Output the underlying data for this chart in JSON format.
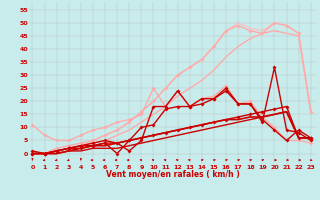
{
  "background_color": "#c8ecec",
  "grid_color": "#b0b0b0",
  "xlabel": "Vent moyen/en rafales ( km/h )",
  "xlabel_color": "#cc0000",
  "ylabel_ticks": [
    0,
    5,
    10,
    15,
    20,
    25,
    30,
    35,
    40,
    45,
    50,
    55
  ],
  "xticks": [
    0,
    1,
    2,
    3,
    4,
    5,
    6,
    7,
    8,
    9,
    10,
    11,
    12,
    13,
    14,
    15,
    16,
    17,
    18,
    19,
    20,
    21,
    22,
    23
  ],
  "xlim": [
    -0.3,
    23.5
  ],
  "ylim": [
    -4,
    58
  ],
  "lines": [
    {
      "x": [
        0,
        1,
        2,
        3,
        4,
        5,
        6,
        7,
        8,
        9,
        10,
        11,
        12,
        13,
        14,
        15,
        16,
        17,
        18,
        19,
        20,
        21,
        22,
        23
      ],
      "y": [
        0,
        0,
        1,
        2,
        3,
        4,
        5,
        7,
        9,
        12,
        15,
        18,
        22,
        25,
        28,
        32,
        37,
        41,
        44,
        46,
        47,
        46,
        45,
        16
      ],
      "color": "#ffaaaa",
      "linewidth": 1.0,
      "marker": null,
      "alpha": 1.0
    },
    {
      "x": [
        0,
        1,
        2,
        3,
        4,
        5,
        6,
        7,
        8,
        9,
        10,
        11,
        12,
        13,
        14,
        15,
        16,
        17,
        18,
        19,
        20,
        21,
        22,
        23
      ],
      "y": [
        0,
        0,
        1,
        2,
        3,
        5,
        7,
        9,
        12,
        16,
        20,
        25,
        30,
        33,
        36,
        41,
        47,
        50,
        48,
        47,
        50,
        49,
        46,
        16
      ],
      "color": "#ffbbbb",
      "linewidth": 1.0,
      "marker": null,
      "alpha": 0.8
    },
    {
      "x": [
        0,
        1,
        2,
        3,
        4,
        5,
        6,
        7,
        8,
        9,
        10,
        11,
        12,
        13,
        14,
        15,
        16,
        17,
        18,
        19,
        20,
        21,
        22,
        23
      ],
      "y": [
        11,
        7,
        5,
        5,
        7,
        9,
        10,
        12,
        13,
        15,
        25,
        18,
        24,
        18,
        21,
        22,
        26,
        19,
        20,
        14,
        10,
        5,
        5,
        4
      ],
      "color": "#ffaaaa",
      "linewidth": 1.0,
      "marker": "D",
      "markersize": 2.0,
      "alpha": 1.0
    },
    {
      "x": [
        0,
        1,
        2,
        3,
        4,
        5,
        6,
        7,
        8,
        9,
        10,
        11,
        12,
        13,
        14,
        15,
        16,
        17,
        18,
        19,
        20,
        21,
        22,
        23
      ],
      "y": [
        0,
        0,
        2,
        3,
        4,
        5,
        7,
        9,
        12,
        16,
        20,
        25,
        30,
        33,
        36,
        41,
        47,
        49,
        47,
        46,
        50,
        49,
        46,
        16
      ],
      "color": "#ffaaaa",
      "linewidth": 1.0,
      "marker": "D",
      "markersize": 2.0,
      "alpha": 1.0
    },
    {
      "x": [
        0,
        1,
        2,
        3,
        4,
        5,
        6,
        7,
        8,
        9,
        10,
        11,
        12,
        13,
        14,
        15,
        16,
        17,
        18,
        19,
        20,
        21,
        22,
        23
      ],
      "y": [
        1,
        0,
        1,
        2,
        3,
        4,
        5,
        4,
        1,
        5,
        18,
        18,
        24,
        18,
        21,
        21,
        25,
        19,
        19,
        13,
        9,
        5,
        9,
        6
      ],
      "color": "#cc0000",
      "linewidth": 1.0,
      "marker": "D",
      "markersize": 2.0,
      "alpha": 1.0
    },
    {
      "x": [
        0,
        1,
        2,
        3,
        4,
        5,
        6,
        7,
        8,
        9,
        10,
        11,
        12,
        13,
        14,
        15,
        16,
        17,
        18,
        19,
        20,
        21,
        22,
        23
      ],
      "y": [
        0,
        0,
        1,
        2,
        3,
        3,
        4,
        0,
        5,
        10,
        11,
        17,
        18,
        18,
        19,
        21,
        24,
        19,
        19,
        12,
        33,
        9,
        8,
        5
      ],
      "color": "#cc0000",
      "linewidth": 1.0,
      "marker": "D",
      "markersize": 2.0,
      "alpha": 1.0
    },
    {
      "x": [
        0,
        1,
        2,
        3,
        4,
        5,
        6,
        7,
        8,
        9,
        10,
        11,
        12,
        13,
        14,
        15,
        16,
        17,
        18,
        19,
        20,
        21,
        22,
        23
      ],
      "y": [
        0,
        0,
        0,
        1,
        1,
        2,
        2,
        2,
        3,
        4,
        5,
        6,
        7,
        8,
        9,
        10,
        11,
        12,
        13,
        14,
        15,
        16,
        6,
        6
      ],
      "color": "#cc0000",
      "linewidth": 1.0,
      "marker": null,
      "alpha": 1.0
    },
    {
      "x": [
        0,
        1,
        2,
        3,
        4,
        5,
        6,
        7,
        8,
        9,
        10,
        11,
        12,
        13,
        14,
        15,
        16,
        17,
        18,
        19,
        20,
        21,
        22,
        23
      ],
      "y": [
        0,
        0,
        1,
        2,
        2,
        3,
        4,
        4,
        5,
        6,
        7,
        8,
        9,
        10,
        11,
        12,
        13,
        14,
        15,
        16,
        17,
        18,
        6,
        6
      ],
      "color": "#cc0000",
      "linewidth": 1.0,
      "marker": "D",
      "markersize": 2.0,
      "alpha": 1.0
    },
    {
      "x": [
        0,
        1,
        2,
        3,
        4,
        5,
        6,
        7,
        8,
        9,
        10,
        11,
        12,
        13,
        14,
        15,
        16,
        17,
        18,
        19,
        20,
        21,
        22,
        23
      ],
      "y": [
        0,
        0,
        0,
        1,
        2,
        3,
        3,
        4,
        5,
        6,
        7,
        8,
        9,
        10,
        11,
        12,
        13,
        13,
        14,
        14,
        15,
        16,
        6,
        6
      ],
      "color": "#cc0000",
      "linewidth": 1.2,
      "marker": null,
      "alpha": 1.0
    }
  ],
  "wind_arrows": {
    "y": -2.5,
    "color": "#cc0000",
    "angles_deg": [
      180,
      225,
      225,
      225,
      180,
      270,
      270,
      270,
      270,
      315,
      315,
      315,
      315,
      315,
      45,
      45,
      45,
      45,
      45,
      45,
      90,
      90,
      90,
      135
    ]
  }
}
